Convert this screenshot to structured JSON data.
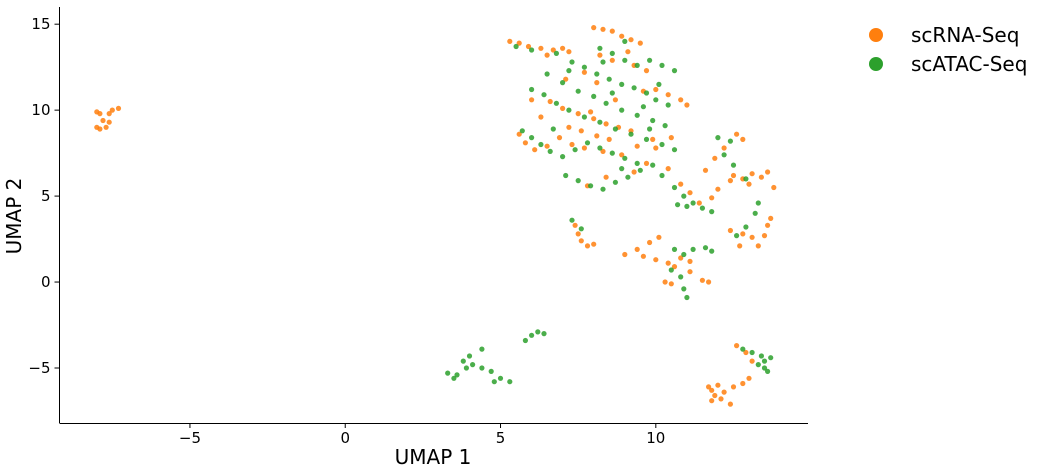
{
  "chart_data": {
    "type": "scatter",
    "title": "",
    "xlabel": "UMAP 1",
    "ylabel": "UMAP 2",
    "xlim": [
      -9.2,
      14.9
    ],
    "ylim": [
      -8.2,
      16
    ],
    "xticks": [
      -5,
      0,
      5,
      10
    ],
    "yticks": [
      -5,
      0,
      5,
      10,
      15
    ],
    "xtick_labels": [
      "−5",
      "0",
      "5",
      "10"
    ],
    "ytick_labels": [
      "−5",
      "0",
      "5",
      "10",
      "15"
    ],
    "grid": false,
    "legend_position": "outside-top-right",
    "series": [
      {
        "name": "scRNA-Seq",
        "color": "#ff7f0e",
        "points": [
          [
            -8.0,
            9.9
          ],
          [
            -7.9,
            9.8
          ],
          [
            -7.6,
            9.8
          ],
          [
            -7.5,
            10.0
          ],
          [
            -7.3,
            10.1
          ],
          [
            -8.0,
            9.0
          ],
          [
            -7.9,
            8.9
          ],
          [
            -7.7,
            9.0
          ],
          [
            -7.6,
            9.3
          ],
          [
            -7.8,
            9.4
          ],
          [
            5.3,
            14.0
          ],
          [
            5.6,
            13.9
          ],
          [
            5.9,
            13.7
          ],
          [
            6.3,
            13.6
          ],
          [
            6.7,
            13.5
          ],
          [
            7.0,
            13.6
          ],
          [
            7.2,
            13.4
          ],
          [
            6.5,
            13.2
          ],
          [
            8.0,
            14.8
          ],
          [
            8.3,
            14.7
          ],
          [
            8.6,
            14.6
          ],
          [
            8.9,
            14.3
          ],
          [
            9.2,
            14.1
          ],
          [
            9.5,
            13.9
          ],
          [
            8.2,
            13.2
          ],
          [
            8.6,
            12.9
          ],
          [
            9.3,
            12.6
          ],
          [
            9.7,
            12.3
          ],
          [
            7.7,
            12.2
          ],
          [
            8.1,
            11.6
          ],
          [
            9.6,
            11.1
          ],
          [
            10.0,
            11.2
          ],
          [
            10.4,
            10.9
          ],
          [
            10.8,
            10.6
          ],
          [
            11.0,
            10.3
          ],
          [
            6.0,
            10.6
          ],
          [
            6.6,
            10.5
          ],
          [
            7.0,
            10.1
          ],
          [
            7.5,
            9.8
          ],
          [
            8.0,
            9.5
          ],
          [
            8.4,
            9.2
          ],
          [
            8.8,
            9.0
          ],
          [
            9.2,
            8.8
          ],
          [
            7.2,
            9.0
          ],
          [
            7.6,
            8.8
          ],
          [
            8.1,
            8.5
          ],
          [
            8.5,
            8.3
          ],
          [
            5.6,
            8.6
          ],
          [
            5.8,
            8.1
          ],
          [
            6.1,
            7.7
          ],
          [
            6.5,
            7.9
          ],
          [
            6.9,
            8.4
          ],
          [
            7.3,
            8.0
          ],
          [
            7.7,
            7.8
          ],
          [
            8.3,
            7.6
          ],
          [
            8.9,
            7.4
          ],
          [
            9.4,
            7.9
          ],
          [
            9.9,
            8.3
          ],
          [
            10.5,
            8.4
          ],
          [
            9.3,
            6.4
          ],
          [
            9.7,
            6.9
          ],
          [
            8.4,
            6.1
          ],
          [
            7.8,
            5.6
          ],
          [
            10.4,
            6.6
          ],
          [
            10.8,
            5.7
          ],
          [
            11.1,
            5.2
          ],
          [
            11.4,
            4.6
          ],
          [
            11.8,
            4.9
          ],
          [
            12.0,
            5.4
          ],
          [
            11.6,
            6.5
          ],
          [
            11.9,
            7.2
          ],
          [
            12.2,
            7.8
          ],
          [
            12.6,
            8.6
          ],
          [
            12.8,
            8.3
          ],
          [
            12.5,
            6.2
          ],
          [
            12.8,
            6.0
          ],
          [
            13.1,
            6.3
          ],
          [
            13.4,
            6.1
          ],
          [
            13.6,
            6.4
          ],
          [
            13.8,
            5.5
          ],
          [
            13.0,
            5.7
          ],
          [
            12.4,
            5.9
          ],
          [
            7.4,
            3.3
          ],
          [
            7.5,
            2.8
          ],
          [
            7.6,
            2.4
          ],
          [
            7.8,
            2.1
          ],
          [
            8.0,
            2.2
          ],
          [
            9.0,
            1.6
          ],
          [
            9.4,
            1.9
          ],
          [
            9.8,
            2.3
          ],
          [
            10.1,
            2.6
          ],
          [
            9.6,
            1.5
          ],
          [
            10.0,
            1.3
          ],
          [
            10.4,
            1.1
          ],
          [
            10.8,
            1.4
          ],
          [
            11.1,
            1.2
          ],
          [
            10.6,
            0.9
          ],
          [
            10.3,
            0.0
          ],
          [
            10.5,
            -0.1
          ],
          [
            11.5,
            0.1
          ],
          [
            11.7,
            0.0
          ],
          [
            11.1,
            0.6
          ],
          [
            12.4,
            3.0
          ],
          [
            12.8,
            2.8
          ],
          [
            13.1,
            2.6
          ],
          [
            13.3,
            2.1
          ],
          [
            13.5,
            2.7
          ],
          [
            13.6,
            3.3
          ],
          [
            13.7,
            3.7
          ],
          [
            12.7,
            2.1
          ],
          [
            12.6,
            -3.7
          ],
          [
            12.9,
            -4.1
          ],
          [
            13.1,
            -4.6
          ],
          [
            11.8,
            -6.3
          ],
          [
            11.9,
            -6.6
          ],
          [
            12.1,
            -6.8
          ],
          [
            12.2,
            -6.4
          ],
          [
            12.5,
            -6.1
          ],
          [
            12.8,
            -5.9
          ],
          [
            13.0,
            -5.6
          ],
          [
            11.8,
            -6.9
          ],
          [
            12.4,
            -7.1
          ],
          [
            11.7,
            -6.1
          ],
          [
            12.0,
            -6.0
          ],
          [
            7.1,
            11.8
          ],
          [
            10.0,
            7.8
          ],
          [
            8.7,
            10.6
          ],
          [
            6.3,
            9.6
          ],
          [
            7.9,
            9.9
          ],
          [
            9.1,
            13.4
          ]
        ]
      },
      {
        "name": "scATAC-Seq",
        "color": "#2ca02c",
        "points": [
          [
            5.5,
            13.7
          ],
          [
            6.0,
            13.5
          ],
          [
            6.8,
            13.3
          ],
          [
            7.3,
            12.8
          ],
          [
            7.7,
            12.5
          ],
          [
            8.1,
            12.1
          ],
          [
            8.5,
            11.8
          ],
          [
            8.9,
            11.5
          ],
          [
            9.3,
            11.3
          ],
          [
            9.7,
            11.0
          ],
          [
            10.0,
            10.6
          ],
          [
            10.4,
            10.3
          ],
          [
            8.2,
            13.6
          ],
          [
            8.6,
            13.3
          ],
          [
            9.0,
            12.9
          ],
          [
            9.4,
            12.6
          ],
          [
            9.8,
            12.9
          ],
          [
            10.2,
            12.6
          ],
          [
            9.0,
            14.0
          ],
          [
            7.0,
            11.6
          ],
          [
            7.5,
            11.1
          ],
          [
            8.0,
            10.8
          ],
          [
            8.4,
            10.4
          ],
          [
            8.9,
            10.0
          ],
          [
            9.4,
            9.7
          ],
          [
            9.9,
            9.4
          ],
          [
            10.3,
            9.1
          ],
          [
            6.0,
            11.2
          ],
          [
            6.4,
            10.9
          ],
          [
            6.8,
            10.4
          ],
          [
            7.2,
            10.0
          ],
          [
            7.7,
            9.6
          ],
          [
            8.2,
            9.3
          ],
          [
            8.7,
            8.9
          ],
          [
            9.2,
            8.6
          ],
          [
            9.7,
            8.3
          ],
          [
            10.2,
            8.0
          ],
          [
            10.6,
            7.7
          ],
          [
            5.7,
            8.8
          ],
          [
            6.0,
            8.4
          ],
          [
            6.3,
            8.0
          ],
          [
            6.6,
            7.6
          ],
          [
            7.0,
            7.3
          ],
          [
            7.4,
            7.7
          ],
          [
            7.8,
            8.1
          ],
          [
            8.2,
            7.8
          ],
          [
            8.6,
            7.5
          ],
          [
            9.0,
            7.2
          ],
          [
            9.4,
            6.9
          ],
          [
            7.1,
            6.2
          ],
          [
            7.5,
            5.9
          ],
          [
            7.9,
            5.6
          ],
          [
            8.3,
            5.4
          ],
          [
            8.7,
            5.8
          ],
          [
            9.1,
            6.1
          ],
          [
            9.5,
            6.5
          ],
          [
            9.9,
            6.8
          ],
          [
            10.2,
            6.2
          ],
          [
            10.6,
            5.5
          ],
          [
            10.9,
            5.0
          ],
          [
            11.2,
            4.6
          ],
          [
            11.5,
            4.3
          ],
          [
            11.8,
            4.1
          ],
          [
            10.7,
            4.5
          ],
          [
            11.0,
            4.4
          ],
          [
            12.0,
            8.4
          ],
          [
            12.4,
            8.2
          ],
          [
            12.2,
            7.4
          ],
          [
            12.5,
            6.8
          ],
          [
            12.9,
            6.0
          ],
          [
            13.3,
            4.6
          ],
          [
            13.2,
            4.0
          ],
          [
            12.9,
            3.2
          ],
          [
            12.6,
            2.7
          ],
          [
            7.3,
            3.6
          ],
          [
            7.6,
            3.1
          ],
          [
            10.6,
            1.9
          ],
          [
            10.9,
            1.6
          ],
          [
            11.2,
            1.9
          ],
          [
            11.6,
            2.0
          ],
          [
            11.8,
            1.8
          ],
          [
            10.5,
            0.7
          ],
          [
            10.8,
            0.3
          ],
          [
            10.9,
            -0.4
          ],
          [
            11.0,
            -0.9
          ],
          [
            3.3,
            -5.3
          ],
          [
            3.6,
            -5.4
          ],
          [
            3.9,
            -5.0
          ],
          [
            4.1,
            -4.8
          ],
          [
            4.4,
            -5.0
          ],
          [
            4.7,
            -5.2
          ],
          [
            5.0,
            -5.6
          ],
          [
            5.3,
            -5.8
          ],
          [
            4.8,
            -5.8
          ],
          [
            3.8,
            -4.6
          ],
          [
            4.0,
            -4.3
          ],
          [
            4.4,
            -3.9
          ],
          [
            3.5,
            -5.6
          ],
          [
            5.8,
            -3.4
          ],
          [
            6.0,
            -3.1
          ],
          [
            6.2,
            -2.9
          ],
          [
            6.4,
            -3.0
          ],
          [
            12.8,
            -3.9
          ],
          [
            13.1,
            -4.1
          ],
          [
            13.4,
            -4.3
          ],
          [
            13.7,
            -4.4
          ],
          [
            13.5,
            -4.6
          ],
          [
            13.3,
            -4.8
          ],
          [
            13.5,
            -5.0
          ],
          [
            13.6,
            -5.2
          ],
          [
            8.6,
            11.0
          ],
          [
            9.6,
            10.2
          ],
          [
            7.2,
            12.3
          ],
          [
            6.5,
            12.1
          ],
          [
            10.6,
            12.3
          ],
          [
            8.3,
            12.8
          ],
          [
            9.8,
            8.9
          ],
          [
            6.7,
            8.9
          ],
          [
            8.9,
            6.6
          ],
          [
            10.1,
            11.5
          ]
        ]
      }
    ]
  }
}
